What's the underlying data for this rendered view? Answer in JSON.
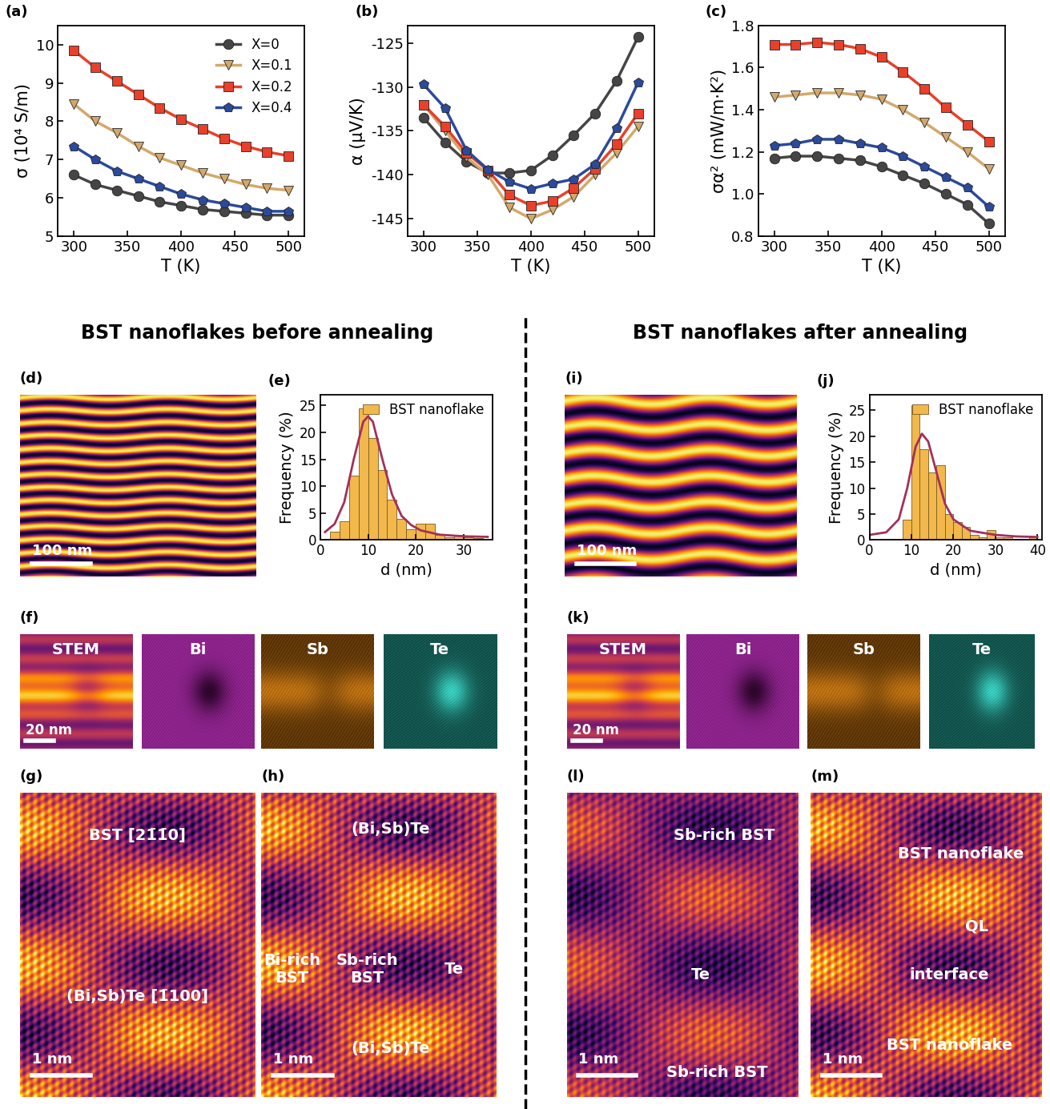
{
  "chart_data": [
    {
      "type": "line",
      "panel": "(a)",
      "xlabel": "T (K)",
      "ylabel": "σ (10⁴ S/m)",
      "x": [
        300,
        320,
        340,
        360,
        380,
        400,
        420,
        440,
        460,
        480,
        500
      ],
      "xlim": [
        285,
        515
      ],
      "xticks": [
        300,
        350,
        400,
        450,
        500
      ],
      "ylim": [
        5,
        10.5
      ],
      "yticks": [
        5,
        6,
        7,
        8,
        9,
        10
      ],
      "legend": "upper right",
      "series": [
        {
          "name": "X=0",
          "color": "#454545",
          "marker": "circle",
          "values": [
            6.6,
            6.35,
            6.2,
            6.05,
            5.9,
            5.8,
            5.7,
            5.65,
            5.6,
            5.55,
            5.55
          ]
        },
        {
          "name": "X=0.1",
          "color": "#d2a86c",
          "marker": "triangle_down",
          "values": [
            8.45,
            8.0,
            7.7,
            7.35,
            7.05,
            6.85,
            6.65,
            6.5,
            6.35,
            6.25,
            6.2
          ]
        },
        {
          "name": "X=0.2",
          "color": "#e8402a",
          "marker": "square",
          "values": [
            9.85,
            9.4,
            9.05,
            8.7,
            8.35,
            8.05,
            7.8,
            7.55,
            7.35,
            7.2,
            7.1
          ]
        },
        {
          "name": "X=0.4",
          "color": "#2b4a9b",
          "marker": "pentagon",
          "values": [
            7.35,
            7.0,
            6.7,
            6.5,
            6.3,
            6.1,
            5.95,
            5.85,
            5.75,
            5.65,
            5.65
          ]
        }
      ]
    },
    {
      "type": "line",
      "panel": "(b)",
      "xlabel": "T (K)",
      "ylabel": "α (μV/K)",
      "x": [
        300,
        320,
        340,
        360,
        380,
        400,
        420,
        440,
        460,
        480,
        500
      ],
      "xlim": [
        285,
        515
      ],
      "xticks": [
        300,
        350,
        400,
        450,
        500
      ],
      "ylim": [
        -147,
        -123
      ],
      "yticks": [
        -145,
        -140,
        -135,
        -130,
        -125
      ],
      "series": [
        {
          "name": "X=0",
          "color": "#454545",
          "marker": "circle",
          "values": [
            -133.5,
            -136.3,
            -138.5,
            -139.8,
            -139.8,
            -139.5,
            -137.8,
            -135.5,
            -133,
            -129.3,
            -124.3
          ]
        },
        {
          "name": "X=0.1",
          "color": "#d2a86c",
          "marker": "triangle_down",
          "values": [
            -132,
            -135,
            -138,
            -140,
            -143.7,
            -145,
            -144,
            -142.5,
            -140,
            -137.5,
            -134.5
          ]
        },
        {
          "name": "X=0.2",
          "color": "#e8402a",
          "marker": "square",
          "values": [
            -132,
            -134.5,
            -137.5,
            -139.5,
            -142.3,
            -143.5,
            -143,
            -141.5,
            -139.3,
            -136.5,
            -133
          ]
        },
        {
          "name": "X=0.4",
          "color": "#2b4a9b",
          "marker": "pentagon",
          "values": [
            -129.7,
            -132.4,
            -137.2,
            -139.4,
            -140.8,
            -141.6,
            -141,
            -140.5,
            -138.8,
            -134.7,
            -129.5
          ]
        }
      ]
    },
    {
      "type": "line",
      "panel": "(c)",
      "xlabel": "T (K)",
      "ylabel": "σα² (mW/m·K²)",
      "x": [
        300,
        320,
        340,
        360,
        380,
        400,
        420,
        440,
        460,
        480,
        500
      ],
      "xlim": [
        285,
        515
      ],
      "xticks": [
        300,
        350,
        400,
        450,
        500
      ],
      "ylim": [
        0.8,
        1.8
      ],
      "yticks": [
        0.8,
        1.0,
        1.2,
        1.4,
        1.6,
        1.8
      ],
      "series": [
        {
          "name": "X=0",
          "color": "#454545",
          "marker": "circle",
          "values": [
            1.17,
            1.18,
            1.18,
            1.17,
            1.16,
            1.13,
            1.09,
            1.05,
            1.0,
            0.95,
            0.86
          ]
        },
        {
          "name": "X=0.1",
          "color": "#d2a86c",
          "marker": "triangle_down",
          "values": [
            1.46,
            1.47,
            1.48,
            1.48,
            1.47,
            1.45,
            1.4,
            1.34,
            1.27,
            1.2,
            1.12
          ]
        },
        {
          "name": "X=0.2",
          "color": "#e8402a",
          "marker": "square",
          "values": [
            1.71,
            1.71,
            1.72,
            1.71,
            1.69,
            1.65,
            1.58,
            1.5,
            1.41,
            1.33,
            1.25
          ]
        },
        {
          "name": "X=0.4",
          "color": "#2b4a9b",
          "marker": "pentagon",
          "values": [
            1.23,
            1.24,
            1.26,
            1.26,
            1.24,
            1.22,
            1.18,
            1.13,
            1.08,
            1.03,
            0.94
          ]
        }
      ]
    },
    {
      "type": "histogram",
      "panel": "(e)",
      "xlabel": "d (nm)",
      "ylabel": "Frequency (%)",
      "name": "BST nanoflake",
      "color": "#f2b84b",
      "legend": "upper right",
      "bins": [
        2,
        4,
        6,
        8,
        10,
        12,
        14,
        16,
        18,
        20,
        22,
        24,
        26,
        28,
        30,
        32,
        34
      ],
      "values": [
        1.5,
        3.5,
        12,
        24.5,
        19,
        13,
        7.5,
        4,
        2,
        3,
        3,
        1,
        0.5,
        1,
        0.5,
        0.3
      ],
      "fit": {
        "color": "#a3305a",
        "x": [
          1,
          3,
          5,
          7,
          9,
          10,
          11,
          13,
          15,
          17,
          19,
          21,
          25,
          30,
          35
        ],
        "y": [
          1.5,
          3,
          7,
          15,
          22,
          23,
          22,
          15,
          8.5,
          4.5,
          2.8,
          1.8,
          1.0,
          0.7,
          0.6
        ]
      },
      "xlim": [
        0,
        36
      ],
      "xticks": [
        0,
        10,
        20,
        30
      ],
      "ylim": [
        0,
        27
      ],
      "yticks": [
        0,
        5,
        10,
        15,
        20,
        25
      ]
    },
    {
      "type": "histogram",
      "panel": "(j)",
      "xlabel": "d (nm)",
      "ylabel": "Frequency (%)",
      "name": "BST nanoflake",
      "color": "#f2b84b",
      "legend": "upper right",
      "bins": [
        8,
        10,
        12,
        14,
        16,
        18,
        20,
        22,
        24,
        26,
        28,
        30,
        32,
        34,
        36,
        38,
        40
      ],
      "values": [
        4,
        26,
        17.5,
        13,
        14.5,
        5,
        3.5,
        2.5,
        1,
        0.5,
        2,
        0.5,
        0.5,
        0.3,
        0,
        0.5
      ],
      "fit": {
        "color": "#a3305a",
        "x": [
          0,
          4,
          7,
          9,
          11,
          12.5,
          14,
          16,
          18,
          20,
          24,
          30,
          35,
          40
        ],
        "y": [
          1,
          1.5,
          4,
          10,
          18,
          20.5,
          19,
          13,
          7,
          4,
          1.8,
          1,
          0.7,
          0.6
        ]
      },
      "xlim": [
        0,
        41
      ],
      "xticks": [
        0,
        10,
        20,
        30,
        40
      ],
      "ylim": [
        0,
        28
      ],
      "yticks": [
        0,
        5,
        10,
        15,
        20,
        25
      ]
    }
  ],
  "headings": [
    "BST nanoflakes before annealing",
    "BST nanoflakes after annealing"
  ],
  "images": [
    {
      "panel": "(d)",
      "scale_bar": "100 nm"
    },
    {
      "panel": "(f)",
      "tiles": [
        "STEM",
        "Bi",
        "Sb",
        "Te"
      ],
      "scale_bar": "20 nm"
    },
    {
      "panel": "(g)",
      "labels": [
        "BST [21̄1̄0]",
        "(Bi,Sb)Te [1̄100]"
      ],
      "scale_bar": "1 nm"
    },
    {
      "panel": "(h)",
      "labels": [
        "(Bi,Sb)Te",
        "Bi-rich\nBST",
        "Sb-rich\nBST",
        "Te",
        "(Bi,Sb)Te"
      ],
      "scale_bar": "1 nm"
    },
    {
      "panel": "(i)",
      "scale_bar": "100 nm"
    },
    {
      "panel": "(k)",
      "tiles": [
        "STEM",
        "Bi",
        "Sb",
        "Te"
      ],
      "scale_bar": "20 nm"
    },
    {
      "panel": "(l)",
      "labels": [
        "Sb-rich BST",
        "Te",
        "Sb-rich BST"
      ],
      "scale_bar": "1 nm"
    },
    {
      "panel": "(m)",
      "labels": [
        "BST nanoflake",
        "QL",
        "interface",
        "BST nanoflake"
      ],
      "scale_bar": "1 nm"
    }
  ]
}
